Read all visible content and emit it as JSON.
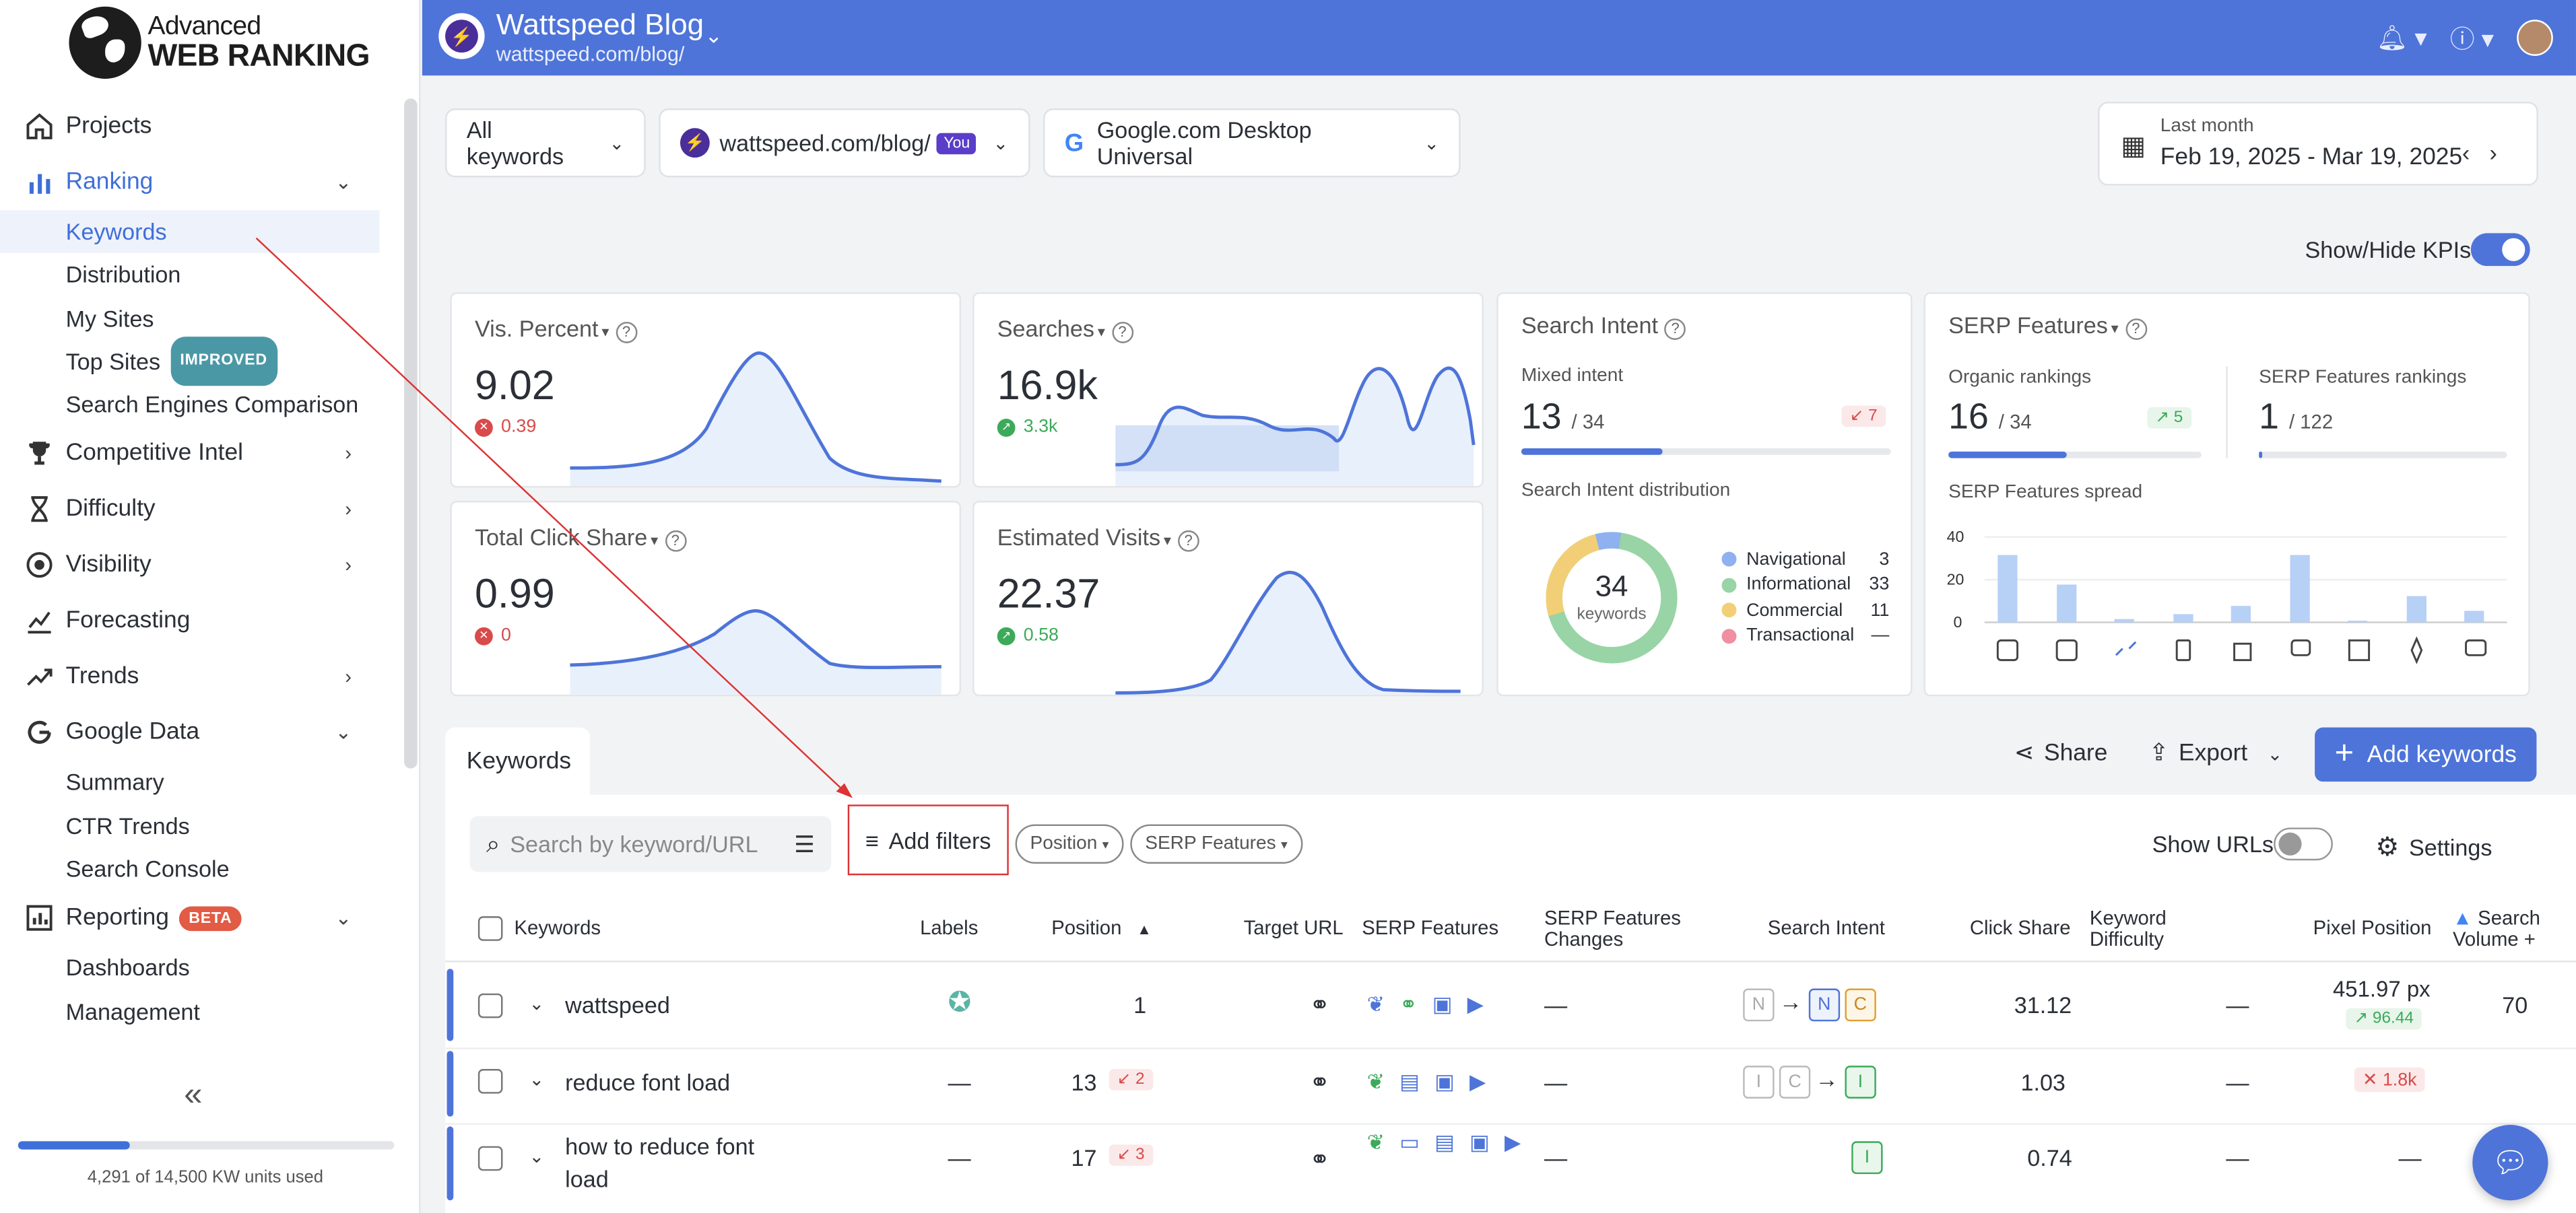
{
  "logo": {
    "line1": "Advanced",
    "line2": "WEB RANKING"
  },
  "sidebar": {
    "items": [
      {
        "label": "Projects",
        "icon": "home-icon"
      },
      {
        "label": "Ranking",
        "icon": "bar-chart-icon",
        "sub": [
          "Keywords",
          "Distribution",
          "My Sites",
          "Top Sites",
          "Search Engines Comparison"
        ]
      },
      {
        "label": "Competitive Intel",
        "icon": "trophy-icon"
      },
      {
        "label": "Difficulty",
        "icon": "hourglass-icon"
      },
      {
        "label": "Visibility",
        "icon": "visibility-icon"
      },
      {
        "label": "Forecasting",
        "icon": "forecast-icon"
      },
      {
        "label": "Trends",
        "icon": "trend-icon"
      },
      {
        "label": "Google Data",
        "icon": "google-icon",
        "sub": [
          "Summary",
          "CTR Trends",
          "Search Console"
        ]
      },
      {
        "label": "Reporting",
        "icon": "report-icon",
        "sub": [
          "Dashboards",
          "Management"
        ]
      }
    ],
    "badge_improved": "IMPROVED",
    "badge_beta": "BETA",
    "usage_text": "4,291 of 14,500 KW units used",
    "usage_fraction": 0.296
  },
  "topbar": {
    "title": "Wattspeed Blog",
    "url": "wattspeed.com/blog/"
  },
  "filters": {
    "keywords": "All keywords",
    "site": "wattspeed.com/blog/",
    "you": "You",
    "engine": "Google.com Desktop Universal",
    "date_label": "Last month",
    "date_range": "Feb 19, 2025 - Mar 19, 2025"
  },
  "kpi_toggle": "Show/Hide KPIs",
  "kpis": {
    "vis": {
      "title": "Vis. Percent",
      "value": "9.02",
      "delta": "0.39"
    },
    "searches": {
      "title": "Searches",
      "value": "16.9k",
      "delta": "3.3k"
    },
    "click": {
      "title": "Total Click Share",
      "value": "0.99",
      "delta": "0"
    },
    "visits": {
      "title": "Estimated Visits",
      "value": "22.37",
      "delta": "0.58"
    }
  },
  "intent": {
    "title": "Search Intent",
    "mixed_label": "Mixed intent",
    "mixed_value": "13",
    "mixed_total": "/ 34",
    "mixed_delta": "7",
    "dist_label": "Search Intent distribution",
    "donut_total": "34",
    "donut_unit": "keywords",
    "legend": [
      {
        "name": "Navigational",
        "value": "3",
        "color": "#8fb1ef"
      },
      {
        "name": "Informational",
        "value": "33",
        "color": "#98d4a5"
      },
      {
        "name": "Commercial",
        "value": "11",
        "color": "#f2cf76"
      },
      {
        "name": "Transactional",
        "value": "—",
        "color": "#ef8fa0"
      }
    ]
  },
  "serp": {
    "title": "SERP Features",
    "organic_label": "Organic rankings",
    "organic_value": "16",
    "organic_total": "/ 34",
    "organic_delta": "5",
    "feat_label": "SERP Features rankings",
    "feat_value": "1",
    "feat_total": "/ 122",
    "spread_label": "SERP Features spread"
  },
  "table": {
    "tab": "Keywords",
    "share": "Share",
    "export": "Export",
    "add_keywords": "Add keywords",
    "search_placeholder": "Search by keyword/URL",
    "add_filters": "Add filters",
    "chip_position": "Position",
    "chip_serp": "SERP Features",
    "show_urls": "Show URLs",
    "settings": "Settings",
    "headers": {
      "keywords": "Keywords",
      "labels": "Labels",
      "position": "Position",
      "target": "Target URL",
      "serp": "SERP Features",
      "serp_changes_1": "SERP Features",
      "serp_changes_2": "Changes",
      "intent": "Search Intent",
      "click": "Click Share",
      "kd_1": "Keyword",
      "kd_2": "Difficulty",
      "pixel": "Pixel Position",
      "vol_1": "Search",
      "vol_2": "Volume +"
    },
    "rows": [
      {
        "keyword": "wattspeed",
        "labels": "",
        "position": "1",
        "pos_delta": "",
        "changes": "—",
        "click": "31.12",
        "kd": "—",
        "pixel": "451.97 px",
        "pixel_delta": "96.44",
        "volume": "70"
      },
      {
        "keyword": "reduce font load",
        "labels": "—",
        "position": "13",
        "pos_delta": "2",
        "changes": "—",
        "click": "1.03",
        "kd": "—",
        "pixel": "1.8k",
        "pixel_delta": "",
        "volume": ""
      },
      {
        "keyword": "how to reduce font",
        "keyword2": "load",
        "labels": "—",
        "position": "17",
        "pos_delta": "3",
        "changes": "—",
        "click": "0.74",
        "kd": "—",
        "pixel": "—",
        "pixel_delta": "",
        "volume": ""
      }
    ]
  }
}
